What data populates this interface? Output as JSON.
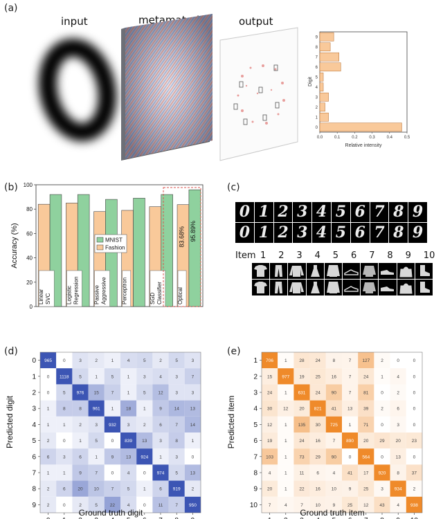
{
  "panels": {
    "a": {
      "label": "(a)",
      "input_title": "input",
      "metamaterial_title": "metamaterial",
      "output_title": "output"
    },
    "b": {
      "label": "(b)"
    },
    "c": {
      "label": "(c)",
      "item_word": "Item",
      "item_numbers": [
        "1",
        "2",
        "3",
        "4",
        "5",
        "6",
        "7",
        "8",
        "9",
        "10"
      ],
      "digits_row1": [
        "0",
        "1",
        "2",
        "3",
        "4",
        "5",
        "6",
        "7",
        "8",
        "9"
      ],
      "digits_row2": [
        "0",
        "1",
        "2",
        "3",
        "4",
        "5",
        "6",
        "7",
        "8",
        "9"
      ]
    },
    "d": {
      "label": "(d)"
    },
    "e": {
      "label": "(e)"
    }
  },
  "colors": {
    "fashion": "#f9c99a",
    "mnist": "#8fd19e",
    "blue_heat": "#3c55b4",
    "orange_heat": "#ef8a2a",
    "dashed_red": "#d9534f"
  },
  "chart_data": [
    {
      "id": "intensity",
      "type": "bar",
      "orientation": "horizontal",
      "categories": [
        "0",
        "1",
        "2",
        "3",
        "4",
        "5",
        "6",
        "7",
        "8",
        "9"
      ],
      "values": [
        0.47,
        0.05,
        0.03,
        0.05,
        0.02,
        0.02,
        0.12,
        0.11,
        0.06,
        0.08
      ],
      "xlabel": "Relative intensity",
      "ylabel": "Digit",
      "xlim": [
        0,
        0.5
      ],
      "xticks": [
        "0.0",
        "0.1",
        "0.2",
        "0.3",
        "0.4",
        "0.5"
      ],
      "color": "#f9c99a"
    },
    {
      "id": "accuracy",
      "type": "bar",
      "categories": [
        "Linear SVC",
        "Logistic Regression",
        "Passive Aggressive",
        "Perceptron",
        "SGD Classifier",
        "Optical"
      ],
      "series": [
        {
          "name": "Fashion",
          "values": [
            84,
            85,
            78,
            79,
            82,
            83.68
          ]
        },
        {
          "name": "MNIST",
          "values": [
            92,
            92,
            88,
            89,
            92,
            95.89
          ]
        }
      ],
      "value_labels": {
        "optical_fashion": "83.68%",
        "optical_mnist": "95.89%"
      },
      "ylabel": "Accuracy (%)",
      "ylim": [
        0,
        100
      ],
      "yticks": [
        "0",
        "20",
        "40",
        "60",
        "80",
        "100"
      ],
      "legend": "center-right"
    },
    {
      "id": "mnist_confusion",
      "type": "heatmap",
      "xlabel": "Ground truth digit",
      "ylabel": "Predicted digit",
      "x_labels": [
        "0",
        "1",
        "2",
        "3",
        "4",
        "5",
        "6",
        "7",
        "8",
        "9"
      ],
      "y_labels": [
        "0",
        "1",
        "2",
        "3",
        "4",
        "5",
        "6",
        "7",
        "8",
        "9"
      ],
      "matrix": [
        [
          965,
          0,
          3,
          2,
          1,
          4,
          5,
          2,
          5,
          3
        ],
        [
          0,
          1118,
          5,
          1,
          5,
          1,
          3,
          4,
          3,
          7
        ],
        [
          0,
          5,
          976,
          15,
          7,
          1,
          5,
          12,
          3,
          3
        ],
        [
          1,
          8,
          8,
          961,
          1,
          18,
          1,
          9,
          14,
          13
        ],
        [
          1,
          1,
          2,
          3,
          932,
          3,
          2,
          6,
          7,
          14
        ],
        [
          2,
          0,
          1,
          5,
          0,
          839,
          13,
          3,
          8,
          1
        ],
        [
          6,
          3,
          6,
          1,
          9,
          13,
          924,
          1,
          3,
          0
        ],
        [
          1,
          1,
          9,
          7,
          0,
          4,
          0,
          974,
          5,
          13
        ],
        [
          2,
          6,
          20,
          10,
          7,
          5,
          1,
          6,
          919,
          2
        ],
        [
          2,
          0,
          2,
          5,
          22,
          4,
          0,
          11,
          7,
          950
        ]
      ]
    },
    {
      "id": "fashion_confusion",
      "type": "heatmap",
      "xlabel": "Ground truth item",
      "ylabel": "Predicted item",
      "x_labels": [
        "1",
        "2",
        "3",
        "4",
        "5",
        "6",
        "7",
        "8",
        "9",
        "10"
      ],
      "y_labels": [
        "1",
        "2",
        "3",
        "4",
        "5",
        "6",
        "7",
        "8",
        "9",
        "10"
      ],
      "matrix": [
        [
          706,
          1,
          28,
          24,
          8,
          7,
          127,
          2,
          0,
          0
        ],
        [
          15,
          977,
          19,
          25,
          16,
          7,
          24,
          1,
          4,
          0
        ],
        [
          24,
          1,
          631,
          24,
          90,
          7,
          81,
          0,
          2,
          0
        ],
        [
          30,
          12,
          20,
          821,
          41,
          13,
          39,
          2,
          6,
          0
        ],
        [
          12,
          1,
          135,
          30,
          725,
          1,
          71,
          0,
          3,
          0
        ],
        [
          19,
          1,
          24,
          16,
          7,
          890,
          20,
          29,
          20,
          23
        ],
        [
          103,
          1,
          73,
          29,
          90,
          0,
          564,
          0,
          13,
          0
        ],
        [
          4,
          1,
          11,
          6,
          4,
          41,
          17,
          920,
          8,
          37
        ],
        [
          20,
          1,
          22,
          16,
          10,
          9,
          25,
          3,
          934,
          2
        ],
        [
          7,
          4,
          7,
          10,
          9,
          25,
          12,
          43,
          4,
          938
        ]
      ]
    }
  ]
}
